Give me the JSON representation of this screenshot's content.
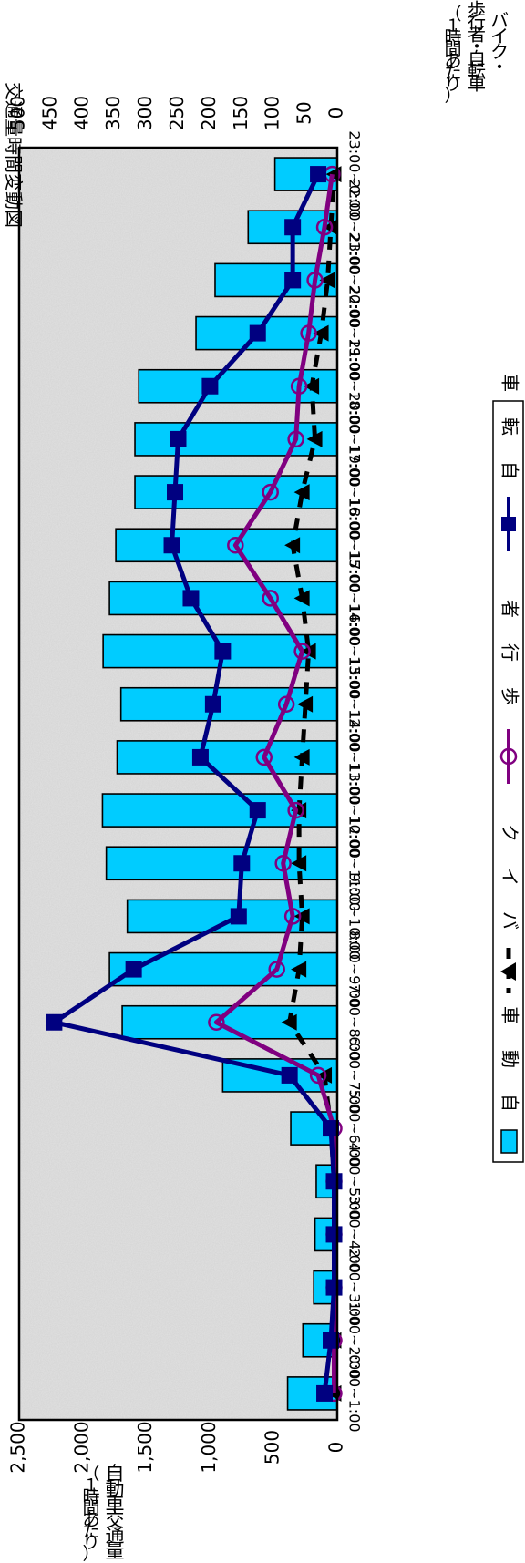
{
  "chart_data": {
    "type": "bar",
    "orientation": "rotated-90-clockwise",
    "title": "交通量時間変動図",
    "categories": [
      "0:00~1:00",
      "1:00~2:00",
      "2:00~3:00",
      "3:00~4:00",
      "4:00~5:00",
      "5:00~6:00",
      "6:00~7:00",
      "7:00~8:00",
      "8:00~9:00",
      "9:00~10:00",
      "10:00~11:00",
      "11:00~12:00",
      "12:00~13:00",
      "13:00~14:00",
      "14:00~15:00",
      "15:00~16:00",
      "16:00~17:00",
      "17:00~18:00",
      "18:00~19:00",
      "19:00~20:00",
      "20:00~21:00",
      "21:00~22:00",
      "22:00~23:00",
      "23:00~0:00"
    ],
    "left_axis": {
      "label_chars": [
        "（",
        "１",
        "時",
        "間",
        "あ",
        "た",
        "り",
        "）"
      ],
      "label_chars2": [
        "自",
        "動",
        "車",
        "交",
        "通",
        "量"
      ],
      "ticks": [
        "0",
        "500",
        "1,000",
        "1,500",
        "2,000",
        "2,500"
      ],
      "ylim": [
        0,
        2500
      ]
    },
    "right_axis": {
      "label_chars": [
        "（",
        "１",
        "時",
        "間",
        "あ",
        "た",
        "り",
        "）"
      ],
      "label_chars2": [
        "歩",
        "行",
        "者",
        "・",
        "自",
        "転",
        "車"
      ],
      "label_chars3": [
        "バ",
        "イ",
        "ク",
        "・"
      ],
      "ticks": [
        "0",
        "50",
        "100",
        "150",
        "200",
        "250",
        "300",
        "350",
        "400",
        "450",
        "500"
      ],
      "ylim": [
        0,
        500
      ]
    },
    "series": [
      {
        "name": "自動車",
        "type": "bar",
        "axis": "left",
        "color": "#00ccff",
        "values": [
          390,
          270,
          185,
          175,
          165,
          365,
          900,
          1690,
          1790,
          1650,
          1815,
          1845,
          1730,
          1700,
          1840,
          1790,
          1740,
          1590,
          1590,
          1560,
          1110,
          960,
          700,
          490
        ]
      },
      {
        "name": "バイク",
        "type": "line-dashed",
        "axis": "right",
        "color": "#000000",
        "values": [
          5,
          5,
          5,
          5,
          5,
          10,
          20,
          75,
          60,
          55,
          60,
          60,
          55,
          50,
          45,
          55,
          70,
          55,
          35,
          40,
          25,
          15,
          10,
          5
        ]
      },
      {
        "name": "歩行者",
        "type": "line",
        "axis": "right",
        "color": "#800080",
        "values": [
          5,
          5,
          5,
          5,
          5,
          5,
          30,
          190,
          95,
          70,
          85,
          65,
          115,
          80,
          55,
          105,
          160,
          105,
          65,
          60,
          45,
          35,
          20,
          8
        ]
      },
      {
        "name": "自転車",
        "type": "line",
        "axis": "right",
        "color": "#000080",
        "values": [
          20,
          10,
          5,
          5,
          5,
          10,
          75,
          445,
          320,
          155,
          150,
          125,
          215,
          195,
          180,
          230,
          260,
          255,
          250,
          200,
          125,
          70,
          70,
          30
        ]
      }
    ],
    "legend": {
      "position": "bottom-right"
    },
    "grid": false
  }
}
